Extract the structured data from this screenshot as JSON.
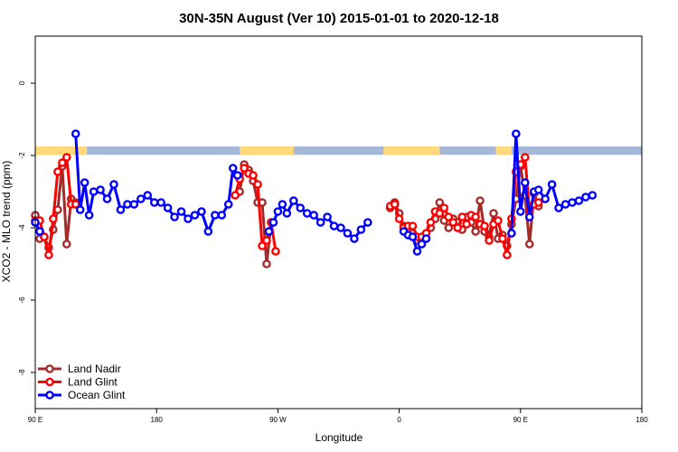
{
  "chart_data": {
    "type": "line",
    "title": "30N-35N August (Ver 10)   2015-01-01 to 2020-12-18",
    "xlabel": "Longitude",
    "ylabel": "XCO2 - MLO trend (ppm)",
    "xlim": [
      -90,
      180
    ],
    "ylim": [
      -9,
      1.3
    ],
    "xticks": [
      {
        "value": -90,
        "label": "90 E"
      },
      {
        "value": -36,
        "label": "180"
      },
      {
        "value": 18,
        "label": "90 W"
      },
      {
        "value": 72,
        "label": "0"
      },
      {
        "value": 126,
        "label": "90 E"
      },
      {
        "value": 180,
        "label": "180"
      }
    ],
    "yticks": [
      0,
      -2,
      -4,
      -6,
      -8
    ],
    "legend": {
      "position": "bottom-left"
    },
    "land_bar": {
      "y_top": -1.75,
      "y_bottom": -1.98,
      "land_color": "#FFD97A",
      "ocean_color": "#A6B8D8",
      "land_ranges": [
        [
          -90,
          -67
        ],
        [
          1,
          25
        ],
        [
          65,
          90
        ],
        [
          115,
          122
        ]
      ]
    },
    "series": [
      {
        "name": "Land Nadir",
        "color": "#A52A2A",
        "points": [
          [
            -90,
            -3.65
          ],
          [
            -88,
            -4.3
          ],
          [
            -86,
            -4.25
          ],
          [
            -84,
            -4.55
          ],
          [
            -82,
            -4.05
          ],
          [
            -80,
            -3.5
          ],
          [
            -78,
            -2.3
          ],
          [
            -76,
            -4.45
          ],
          [
            -74,
            -3.2
          ],
          [
            -72,
            -3.3
          ],
          [
            1,
            -3.0
          ],
          [
            3,
            -2.25
          ],
          [
            5,
            -2.4
          ],
          [
            7,
            -2.7
          ],
          [
            9,
            -3.3
          ],
          [
            11,
            -3.3
          ],
          [
            13,
            -5.0
          ],
          [
            15,
            -3.85
          ],
          [
            68,
            -3.45
          ],
          [
            70,
            -3.3
          ],
          [
            72,
            -3.6
          ],
          [
            74,
            -3.95
          ],
          [
            76,
            -4.05
          ],
          [
            78,
            -4.15
          ],
          [
            80,
            -4.35
          ],
          [
            82,
            -4.4
          ],
          [
            84,
            -4.3
          ],
          [
            86,
            -4.0
          ],
          [
            88,
            -3.75
          ],
          [
            90,
            -3.3
          ],
          [
            92,
            -3.8
          ],
          [
            94,
            -4.0
          ],
          [
            96,
            -3.75
          ],
          [
            98,
            -3.85
          ],
          [
            100,
            -4.05
          ],
          [
            102,
            -3.7
          ],
          [
            104,
            -3.85
          ],
          [
            106,
            -4.1
          ],
          [
            108,
            -3.25
          ],
          [
            110,
            -4.1
          ],
          [
            112,
            -4.25
          ],
          [
            114,
            -3.6
          ],
          [
            116,
            -4.3
          ],
          [
            118,
            -4.2
          ],
          [
            120,
            -4.5
          ],
          [
            122,
            -3.9
          ],
          [
            124,
            -3.2
          ],
          [
            126,
            -2.3
          ],
          [
            128,
            -3.1
          ],
          [
            130,
            -4.45
          ],
          [
            132,
            -3.05
          ],
          [
            134,
            -3.4
          ]
        ]
      },
      {
        "name": "Land Glint",
        "color": "#FF0000",
        "points": [
          [
            -90,
            -3.8
          ],
          [
            -88,
            -3.8
          ],
          [
            -86,
            -4.25
          ],
          [
            -84,
            -4.75
          ],
          [
            -82,
            -3.75
          ],
          [
            -80,
            -2.45
          ],
          [
            -78,
            -2.2
          ],
          [
            -76,
            -2.05
          ],
          [
            -74,
            -3.35
          ],
          [
            -72,
            -3.35
          ],
          [
            -1,
            -3.1
          ],
          [
            1,
            -2.65
          ],
          [
            3,
            -2.35
          ],
          [
            5,
            -2.5
          ],
          [
            7,
            -2.55
          ],
          [
            9,
            -2.8
          ],
          [
            11,
            -4.5
          ],
          [
            13,
            -4.35
          ],
          [
            15,
            -3.85
          ],
          [
            17,
            -4.65
          ],
          [
            68,
            -3.4
          ],
          [
            70,
            -3.35
          ],
          [
            72,
            -3.75
          ],
          [
            74,
            -4.0
          ],
          [
            76,
            -3.95
          ],
          [
            78,
            -3.95
          ],
          [
            80,
            -4.25
          ],
          [
            82,
            -4.25
          ],
          [
            84,
            -4.15
          ],
          [
            86,
            -3.85
          ],
          [
            88,
            -3.55
          ],
          [
            90,
            -3.6
          ],
          [
            92,
            -3.45
          ],
          [
            94,
            -3.7
          ],
          [
            96,
            -3.85
          ],
          [
            98,
            -4.0
          ],
          [
            100,
            -3.7
          ],
          [
            102,
            -3.9
          ],
          [
            104,
            -3.65
          ],
          [
            106,
            -3.7
          ],
          [
            108,
            -3.9
          ],
          [
            110,
            -3.95
          ],
          [
            112,
            -4.35
          ],
          [
            114,
            -3.9
          ],
          [
            116,
            -3.8
          ],
          [
            118,
            -4.3
          ],
          [
            120,
            -4.75
          ],
          [
            122,
            -3.75
          ],
          [
            124,
            -2.45
          ],
          [
            126,
            -2.25
          ],
          [
            128,
            -2.05
          ],
          [
            130,
            -3.55
          ],
          [
            132,
            -3.35
          ],
          [
            134,
            -3.3
          ]
        ]
      },
      {
        "name": "Ocean Glint",
        "color": "#0000FF",
        "points": [
          [
            -90,
            -3.85
          ],
          [
            -88,
            -4.1
          ],
          [
            -72,
            -1.4
          ],
          [
            -70,
            -3.5
          ],
          [
            -68,
            -2.75
          ],
          [
            -66,
            -3.65
          ],
          [
            -64,
            -3.0
          ],
          [
            -61,
            -2.95
          ],
          [
            -58,
            -3.2
          ],
          [
            -55,
            -2.8
          ],
          [
            -52,
            -3.5
          ],
          [
            -49,
            -3.35
          ],
          [
            -46,
            -3.35
          ],
          [
            -43,
            -3.2
          ],
          [
            -40,
            -3.1
          ],
          [
            -37,
            -3.3
          ],
          [
            -34,
            -3.3
          ],
          [
            -31,
            -3.45
          ],
          [
            -28,
            -3.7
          ],
          [
            -25,
            -3.55
          ],
          [
            -22,
            -3.75
          ],
          [
            -19,
            -3.65
          ],
          [
            -16,
            -3.55
          ],
          [
            -13,
            -4.1
          ],
          [
            -10,
            -3.65
          ],
          [
            -7,
            -3.65
          ],
          [
            -4,
            -3.35
          ],
          [
            -2,
            -2.35
          ],
          [
            0,
            -2.55
          ],
          [
            14,
            -4.1
          ],
          [
            16,
            -3.85
          ],
          [
            18,
            -3.55
          ],
          [
            20,
            -3.35
          ],
          [
            22,
            -3.6
          ],
          [
            25,
            -3.25
          ],
          [
            28,
            -3.45
          ],
          [
            31,
            -3.6
          ],
          [
            34,
            -3.65
          ],
          [
            37,
            -3.85
          ],
          [
            40,
            -3.7
          ],
          [
            43,
            -3.95
          ],
          [
            46,
            -4.0
          ],
          [
            49,
            -4.15
          ],
          [
            52,
            -4.3
          ],
          [
            55,
            -4.05
          ],
          [
            58,
            -3.85
          ],
          [
            74,
            -4.1
          ],
          [
            76,
            -4.2
          ],
          [
            78,
            -4.25
          ],
          [
            80,
            -4.65
          ],
          [
            82,
            -4.45
          ],
          [
            84,
            -4.3
          ],
          [
            122,
            -4.15
          ],
          [
            124,
            -1.4
          ],
          [
            126,
            -3.55
          ],
          [
            128,
            -2.75
          ],
          [
            130,
            -3.7
          ],
          [
            132,
            -3.0
          ],
          [
            134,
            -2.95
          ],
          [
            137,
            -3.2
          ],
          [
            140,
            -2.8
          ],
          [
            143,
            -3.45
          ],
          [
            146,
            -3.35
          ],
          [
            149,
            -3.3
          ],
          [
            152,
            -3.25
          ],
          [
            155,
            -3.15
          ],
          [
            158,
            -3.1
          ]
        ]
      }
    ]
  }
}
